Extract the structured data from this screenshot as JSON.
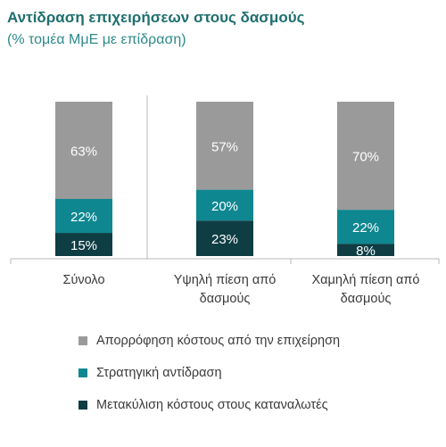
{
  "chart_data": {
    "type": "bar",
    "stacked": true,
    "title": "Αντίδραση επιχειρήσεων στους δασμούς",
    "subtitle": "(% τομέα ΜμΕ με επίδραση)",
    "categories": [
      "Σύνολο",
      "Υψηλή πίεση από δασμούς",
      "Χαμηλή πίεση από δασμούς"
    ],
    "category_lines": [
      [
        "Σύνολο"
      ],
      [
        "Υψηλή πίεση από",
        "δασμούς"
      ],
      [
        "Χαμηλή πίεση από",
        "δασμούς"
      ]
    ],
    "series": [
      {
        "name": "Μετακύλιση κόστους στους καταναλωτές",
        "color": "#0e3d44",
        "values": [
          15,
          23,
          8
        ],
        "labels": [
          "15%",
          "23%",
          "8%"
        ]
      },
      {
        "name": "Στρατηγική αντίδραση",
        "color": "#0e8790",
        "values": [
          22,
          20,
          22
        ],
        "labels": [
          "22%",
          "20%",
          "22%"
        ]
      },
      {
        "name": "Απορρόφηση κόστους από την επιχείρηση",
        "color": "#9a9a9a",
        "values": [
          63,
          57,
          70
        ],
        "labels": [
          "63%",
          "57%",
          "70%"
        ]
      }
    ],
    "ylim": [
      0,
      100
    ],
    "legend_position": "bottom",
    "legend_order": [
      2,
      1,
      0
    ],
    "grid": false
  }
}
